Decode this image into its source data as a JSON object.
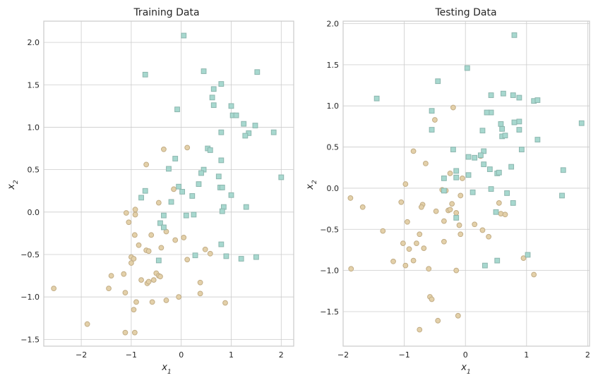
{
  "colors": {
    "class0_fill": "#e3d0a9",
    "class0_edge": "#c2ad86",
    "class1_fill": "#a7d8cf",
    "class1_edge": "#8cb6ae",
    "grid": "#cccccc"
  },
  "chart_data": [
    {
      "type": "scatter",
      "title": "Training Data",
      "xlabel": "x",
      "xlabel_sub": "1",
      "ylabel": "x",
      "ylabel_sub": "2",
      "xlim": [
        -2.75,
        2.25
      ],
      "ylim": [
        -1.58,
        2.25
      ],
      "xticks": [
        -2,
        -1,
        0,
        1,
        2
      ],
      "yticks": [
        -1.5,
        -1.0,
        -0.5,
        0.0,
        0.5,
        1.0,
        1.5,
        2.0
      ],
      "xtick_labels": [
        "−2",
        "−1",
        "0",
        "1",
        "2"
      ],
      "ytick_labels": [
        "−1.5",
        "−1.0",
        "−0.5",
        "0.0",
        "0.5",
        "1.0",
        "1.5",
        "2.0"
      ],
      "grid": true,
      "series": [
        {
          "marker": "circle",
          "points": [
            [
              -2.55,
              -0.9
            ],
            [
              -1.88,
              -1.32
            ],
            [
              -1.45,
              -0.9
            ],
            [
              -1.4,
              -0.75
            ],
            [
              -1.15,
              -0.73
            ],
            [
              -1.12,
              -1.42
            ],
            [
              -1.12,
              -0.95
            ],
            [
              -1.1,
              -0.01
            ],
            [
              -1.05,
              -0.12
            ],
            [
              -1.0,
              -0.53
            ],
            [
              -1.0,
              -0.6
            ],
            [
              -0.95,
              -0.55
            ],
            [
              -0.95,
              -1.15
            ],
            [
              -0.93,
              -0.27
            ],
            [
              -0.93,
              -1.42
            ],
            [
              -0.92,
              0.03
            ],
            [
              -0.92,
              -0.03
            ],
            [
              -0.9,
              -1.06
            ],
            [
              -0.85,
              -0.39
            ],
            [
              -0.8,
              -0.8
            ],
            [
              -0.7,
              0.56
            ],
            [
              -0.7,
              -0.45
            ],
            [
              -0.68,
              -0.84
            ],
            [
              -0.65,
              -0.82
            ],
            [
              -0.65,
              -0.46
            ],
            [
              -0.6,
              -0.27
            ],
            [
              -0.58,
              -1.06
            ],
            [
              -0.55,
              -0.8
            ],
            [
              -0.5,
              -0.72
            ],
            [
              -0.45,
              0.11
            ],
            [
              -0.45,
              -0.75
            ],
            [
              -0.42,
              -0.76
            ],
            [
              -0.4,
              -0.42
            ],
            [
              -0.35,
              0.74
            ],
            [
              -0.3,
              -0.23
            ],
            [
              -0.3,
              -1.04
            ],
            [
              -0.15,
              0.27
            ],
            [
              -0.12,
              -0.33
            ],
            [
              -0.05,
              -1.0
            ],
            [
              0.05,
              -0.3
            ],
            [
              0.12,
              0.76
            ],
            [
              0.12,
              -0.56
            ],
            [
              0.38,
              -0.83
            ],
            [
              0.38,
              -0.96
            ],
            [
              0.48,
              -0.44
            ],
            [
              0.58,
              -0.49
            ],
            [
              0.88,
              -1.07
            ]
          ]
        },
        {
          "marker": "square",
          "points": [
            [
              0.05,
              2.08
            ],
            [
              -0.72,
              1.62
            ],
            [
              0.45,
              1.66
            ],
            [
              1.52,
              1.65
            ],
            [
              0.8,
              1.51
            ],
            [
              0.65,
              1.45
            ],
            [
              0.62,
              1.35
            ],
            [
              0.65,
              1.26
            ],
            [
              1.0,
              1.25
            ],
            [
              -0.08,
              1.21
            ],
            [
              1.03,
              1.14
            ],
            [
              1.1,
              1.14
            ],
            [
              1.25,
              1.04
            ],
            [
              1.48,
              1.02
            ],
            [
              1.35,
              0.93
            ],
            [
              1.28,
              0.9
            ],
            [
              0.8,
              0.94
            ],
            [
              1.85,
              0.94
            ],
            [
              0.53,
              0.75
            ],
            [
              0.58,
              0.73
            ],
            [
              0.8,
              0.61
            ],
            [
              -0.12,
              0.63
            ],
            [
              -0.25,
              0.51
            ],
            [
              0.45,
              0.5
            ],
            [
              0.4,
              0.46
            ],
            [
              2.0,
              0.41
            ],
            [
              0.75,
              0.42
            ],
            [
              0.35,
              0.33
            ],
            [
              0.78,
              0.29
            ],
            [
              0.82,
              0.29
            ],
            [
              -0.05,
              0.3
            ],
            [
              0.02,
              0.24
            ],
            [
              -0.72,
              0.25
            ],
            [
              0.22,
              0.19
            ],
            [
              -0.8,
              0.17
            ],
            [
              -0.2,
              0.12
            ],
            [
              1.0,
              0.2
            ],
            [
              0.85,
              0.06
            ],
            [
              1.3,
              0.06
            ],
            [
              0.82,
              0.01
            ],
            [
              -0.35,
              -0.04
            ],
            [
              0.1,
              -0.04
            ],
            [
              0.25,
              -0.03
            ],
            [
              -0.42,
              -0.13
            ],
            [
              -0.35,
              -0.18
            ],
            [
              0.8,
              -0.38
            ],
            [
              0.28,
              -0.51
            ],
            [
              0.9,
              -0.52
            ],
            [
              1.2,
              -0.55
            ],
            [
              1.5,
              -0.53
            ],
            [
              -0.45,
              -0.57
            ]
          ]
        }
      ]
    },
    {
      "type": "scatter",
      "title": "Testing Data",
      "xlabel": "x",
      "xlabel_sub": "1",
      "ylabel": "x",
      "ylabel_sub": "2",
      "xlim": [
        -2.0,
        2.03
      ],
      "ylim": [
        -1.92,
        2.03
      ],
      "xticks": [
        -2,
        -1,
        0,
        1,
        2
      ],
      "yticks": [
        -1.5,
        -1.0,
        -0.5,
        0.0,
        0.5,
        1.0,
        1.5,
        2.0
      ],
      "xtick_labels": [
        "−2",
        "−1",
        "0",
        "1",
        "2"
      ],
      "ytick_labels": [
        "−1.5",
        "−1.0",
        "−0.5",
        "0.0",
        "0.5",
        "1.0",
        "1.5",
        "2.0"
      ],
      "grid": true,
      "series": [
        {
          "marker": "circle",
          "points": [
            [
              -1.88,
              -0.12
            ],
            [
              -1.68,
              -0.23
            ],
            [
              -1.87,
              -0.98
            ],
            [
              -1.35,
              -0.52
            ],
            [
              -1.05,
              -0.17
            ],
            [
              -0.98,
              0.05
            ],
            [
              -1.02,
              -0.67
            ],
            [
              -0.95,
              -0.41
            ],
            [
              -0.92,
              -0.74
            ],
            [
              -0.85,
              0.45
            ],
            [
              -0.8,
              -0.67
            ],
            [
              -0.75,
              -0.56
            ],
            [
              -0.7,
              -0.2
            ],
            [
              -0.72,
              -0.23
            ],
            [
              -0.68,
              -0.73
            ],
            [
              -0.65,
              0.3
            ],
            [
              -0.6,
              -0.98
            ],
            [
              -0.58,
              -1.32
            ],
            [
              -0.55,
              -1.35
            ],
            [
              -0.5,
              0.83
            ],
            [
              -0.48,
              -0.28
            ],
            [
              -0.45,
              -1.61
            ],
            [
              -0.38,
              -0.02
            ],
            [
              -0.35,
              -0.4
            ],
            [
              -0.32,
              -0.03
            ],
            [
              -0.28,
              -0.27
            ],
            [
              -0.25,
              -0.26
            ],
            [
              -0.22,
              -0.19
            ],
            [
              -0.2,
              0.98
            ],
            [
              -0.15,
              -0.3
            ],
            [
              -0.1,
              -0.45
            ],
            [
              -0.08,
              -0.09
            ],
            [
              -0.05,
              0.12
            ],
            [
              -0.25,
              0.18
            ],
            [
              -0.35,
              -0.65
            ],
            [
              -0.15,
              -1.0
            ],
            [
              -0.12,
              -1.55
            ],
            [
              -0.08,
              -0.56
            ],
            [
              0.15,
              -0.44
            ],
            [
              0.28,
              -0.51
            ],
            [
              0.38,
              -0.59
            ],
            [
              0.55,
              -0.18
            ],
            [
              0.58,
              -0.31
            ],
            [
              0.65,
              -0.32
            ],
            [
              0.25,
              0.39
            ],
            [
              0.95,
              -0.85
            ],
            [
              1.12,
              -1.05
            ],
            [
              -0.85,
              -0.88
            ],
            [
              -0.75,
              -1.72
            ],
            [
              -1.18,
              -0.89
            ],
            [
              -0.98,
              -0.94
            ]
          ]
        },
        {
          "marker": "square",
          "points": [
            [
              0.8,
              1.86
            ],
            [
              0.03,
              1.46
            ],
            [
              -0.45,
              1.3
            ],
            [
              -1.45,
              1.09
            ],
            [
              0.42,
              1.13
            ],
            [
              0.62,
              1.15
            ],
            [
              0.78,
              1.13
            ],
            [
              0.88,
              1.1
            ],
            [
              1.12,
              1.06
            ],
            [
              1.18,
              1.07
            ],
            [
              0.42,
              0.92
            ],
            [
              0.35,
              0.92
            ],
            [
              -0.55,
              0.94
            ],
            [
              0.8,
              0.8
            ],
            [
              0.88,
              0.81
            ],
            [
              0.58,
              0.78
            ],
            [
              1.9,
              0.79
            ],
            [
              -0.55,
              0.71
            ],
            [
              0.28,
              0.7
            ],
            [
              0.6,
              0.72
            ],
            [
              0.88,
              0.71
            ],
            [
              0.6,
              0.63
            ],
            [
              0.65,
              0.64
            ],
            [
              1.18,
              0.59
            ],
            [
              0.3,
              0.45
            ],
            [
              -0.2,
              0.47
            ],
            [
              0.92,
              0.47
            ],
            [
              0.05,
              0.38
            ],
            [
              0.15,
              0.37
            ],
            [
              0.25,
              0.4
            ],
            [
              0.3,
              0.29
            ],
            [
              0.4,
              0.23
            ],
            [
              0.75,
              0.26
            ],
            [
              -0.15,
              0.21
            ],
            [
              1.6,
              0.22
            ],
            [
              0.52,
              0.18
            ],
            [
              0.55,
              0.19
            ],
            [
              0.05,
              0.16
            ],
            [
              -0.35,
              0.12
            ],
            [
              -0.15,
              0.13
            ],
            [
              -0.35,
              -0.03
            ],
            [
              0.42,
              -0.01
            ],
            [
              0.68,
              -0.06
            ],
            [
              1.58,
              -0.09
            ],
            [
              0.12,
              -0.05
            ],
            [
              0.78,
              -0.18
            ],
            [
              0.5,
              -0.29
            ],
            [
              -0.15,
              -0.36
            ],
            [
              1.02,
              -0.81
            ],
            [
              0.52,
              -0.88
            ],
            [
              0.32,
              -0.94
            ]
          ]
        }
      ]
    }
  ]
}
